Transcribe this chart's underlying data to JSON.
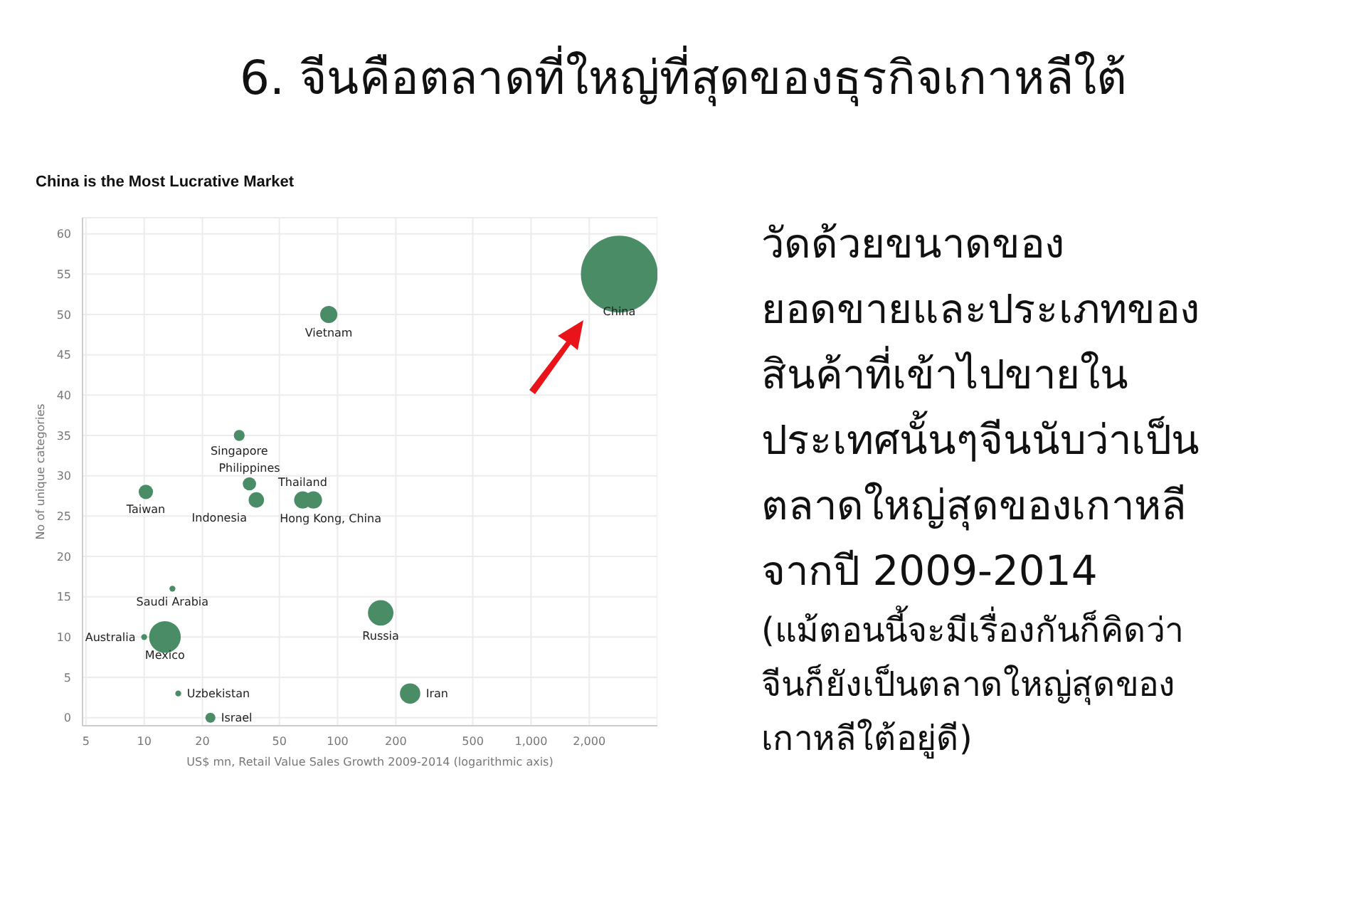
{
  "chart_data": {
    "type": "bubble",
    "title": "6. จีนคือตลาดที่ใหญ่ที่สุดของธุรกิจเกาหลีใต้",
    "subtitle": "China is the Most Lucrative Market",
    "xlabel": "US$ mn, Retail Value Sales Growth 2009-2014 (logarithmic axis)",
    "ylabel": "No of unique categories",
    "x": [
      2860,
      90,
      31,
      35,
      10.2,
      38,
      66,
      75,
      14,
      167,
      10,
      12.8,
      15,
      237,
      22
    ],
    "values": [
      55,
      50,
      35,
      29,
      28,
      27,
      27,
      27,
      16,
      13,
      10,
      10,
      3,
      3,
      0
    ],
    "sizes": [
      1,
      0.05,
      0.02,
      0.03,
      0.035,
      0.04,
      0.05,
      0.05,
      0.006,
      0.11,
      0.006,
      0.17,
      0.006,
      0.07,
      0.017
    ],
    "color": "#4a8c66",
    "marker": "circle",
    "log": "x",
    "grid": true,
    "xlim": [
      4.8,
      4500
    ],
    "xticks": [
      5,
      10,
      20,
      50,
      100,
      200,
      500,
      {
        "value": 1000,
        "label": "1,000"
      },
      {
        "value": 2000,
        "label": "2,000"
      }
    ],
    "ylim": [
      -1,
      62
    ],
    "yticks": [
      0,
      5,
      10,
      15,
      20,
      25,
      30,
      35,
      40,
      45,
      50,
      55,
      60
    ],
    "annotations": [
      {
        "text": "China",
        "x": 2860,
        "y": 55
      },
      {
        "text": "Vietnam",
        "x": 90,
        "y": 50
      },
      {
        "text": "Singapore",
        "x": 31,
        "y": 35
      },
      {
        "text": "Philippines",
        "x": 35,
        "y": 29
      },
      {
        "text": "Taiwan",
        "x": 10.2,
        "y": 28
      },
      {
        "text": "Indonesia",
        "x": 38,
        "y": 27
      },
      {
        "text": "Thailand",
        "x": 66,
        "y": 27
      },
      {
        "text": "Hong Kong, China",
        "x": 75,
        "y": 27
      },
      {
        "text": "Saudi Arabia",
        "x": 14,
        "y": 16
      },
      {
        "text": "Russia",
        "x": 167,
        "y": 13
      },
      {
        "text": "Australia",
        "x": 10,
        "y": 10
      },
      {
        "text": "Mexico",
        "x": 12.8,
        "y": 10
      },
      {
        "text": "Uzbekistan",
        "x": 15,
        "y": 3
      },
      {
        "text": "Iran",
        "x": 237,
        "y": 3
      },
      {
        "text": "Israel",
        "x": 22,
        "y": 0
      },
      "วัดด้วยขนาดของ\nยอดขายและประเภทของ\nสินค้าที่เข้าไปขายใน\nประเทศนั้นๆจีนนับว่าเป็น\nตลาดใหญ่สุดของเกาหลี\nจากปี 2009-2014",
      "(แม้ตอนนี้จะมีเรื่องกันก็คิดว่า\nจีนก็ยังเป็นตลาดใหญ่สุดของ\nเกาหลีใต้อยู่ดี)"
    ]
  }
}
